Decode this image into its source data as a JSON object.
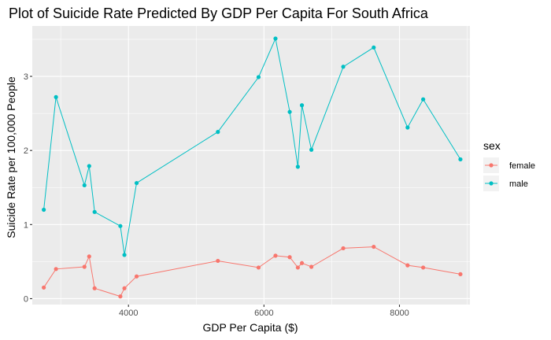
{
  "chart_data": {
    "type": "line",
    "title": "Plot of Suicide Rate Predicted By GDP Per Capita For South Africa",
    "xlabel": "GDP Per Capita ($)",
    "ylabel": "Suicide Rate per 100,000 People",
    "xlim": [
      2580,
      9040
    ],
    "ylim": [
      -0.08,
      3.68
    ],
    "x_ticks": [
      4000,
      6000,
      8000
    ],
    "x_tick_labels": [
      "4000",
      "6000",
      "8000"
    ],
    "x_minor": [
      3000,
      5000,
      7000,
      9000
    ],
    "y_ticks": [
      0,
      1,
      2,
      3
    ],
    "y_tick_labels": [
      "0",
      "1",
      "2",
      "3"
    ],
    "y_minor": [
      0.5,
      1.5,
      2.5,
      3.5
    ],
    "grid": true,
    "panel_background": "#ebebeb",
    "legend": {
      "title": "sex",
      "position": "right"
    },
    "series": [
      {
        "name": "female",
        "color": "#f8766d",
        "points": [
          [
            2750,
            0.15
          ],
          [
            2930,
            0.4
          ],
          [
            3350,
            0.43
          ],
          [
            3420,
            0.57
          ],
          [
            3500,
            0.14
          ],
          [
            3880,
            0.03
          ],
          [
            3940,
            0.14
          ],
          [
            4120,
            0.3
          ],
          [
            5320,
            0.51
          ],
          [
            5920,
            0.42
          ],
          [
            6170,
            0.58
          ],
          [
            6380,
            0.56
          ],
          [
            6500,
            0.42
          ],
          [
            6560,
            0.48
          ],
          [
            6700,
            0.43
          ],
          [
            7170,
            0.68
          ],
          [
            7620,
            0.7
          ],
          [
            8120,
            0.45
          ],
          [
            8350,
            0.42
          ],
          [
            8900,
            0.33
          ]
        ]
      },
      {
        "name": "male",
        "color": "#00bfc4",
        "points": [
          [
            2750,
            1.2
          ],
          [
            2930,
            2.72
          ],
          [
            3350,
            1.53
          ],
          [
            3420,
            1.79
          ],
          [
            3500,
            1.17
          ],
          [
            3880,
            0.98
          ],
          [
            3940,
            0.59
          ],
          [
            4120,
            1.56
          ],
          [
            5320,
            2.25
          ],
          [
            5920,
            2.99
          ],
          [
            6170,
            3.51
          ],
          [
            6380,
            2.52
          ],
          [
            6500,
            1.78
          ],
          [
            6560,
            2.61
          ],
          [
            6700,
            2.01
          ],
          [
            7170,
            3.13
          ],
          [
            7620,
            3.39
          ],
          [
            8120,
            2.31
          ],
          [
            8350,
            2.69
          ],
          [
            8900,
            1.88
          ]
        ]
      }
    ]
  }
}
